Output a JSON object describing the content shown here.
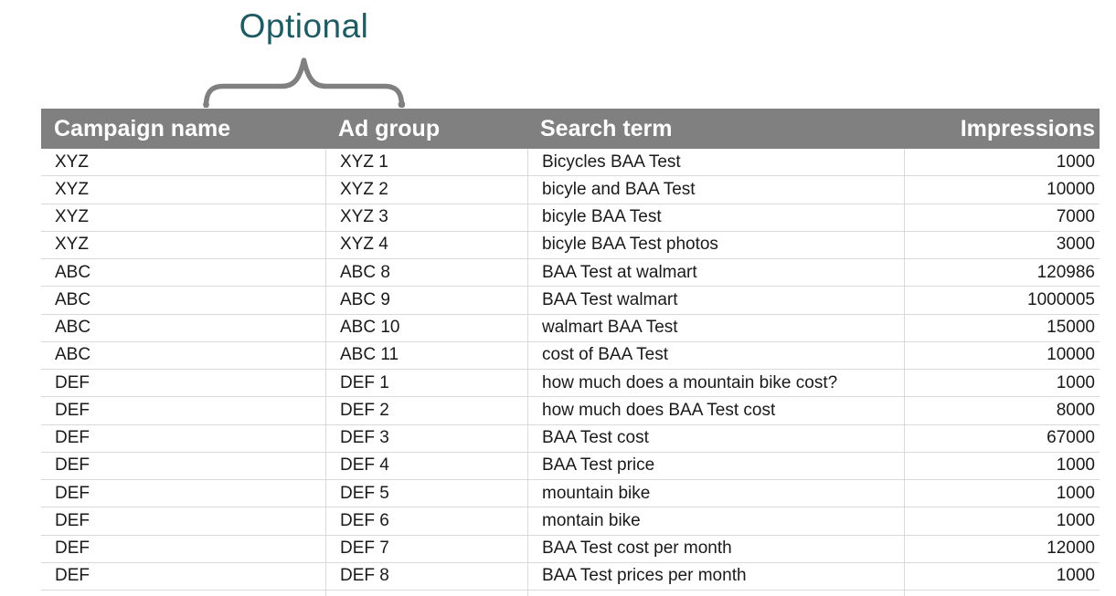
{
  "annotation": {
    "label": "Optional"
  },
  "colors": {
    "header_bg": "#808080",
    "header_text": "#ffffff",
    "annotation_text": "#1f5b62",
    "brace": "#808080",
    "gridline": "#d9d9d9",
    "cell_text": "#1a1a1a",
    "page_bg": "#ffffff"
  },
  "table": {
    "columns": [
      "Campaign name",
      "Ad group",
      "Search term",
      "Impressions"
    ],
    "rows": [
      [
        "XYZ",
        "XYZ 1",
        "Bicycles BAA Test",
        "1000"
      ],
      [
        "XYZ",
        "XYZ 2",
        "bicyle and BAA Test",
        "10000"
      ],
      [
        "XYZ",
        "XYZ 3",
        "bicyle BAA Test",
        "7000"
      ],
      [
        "XYZ",
        "XYZ 4",
        "bicyle BAA Test photos",
        "3000"
      ],
      [
        "ABC",
        "ABC 8",
        "BAA Test at walmart",
        "120986"
      ],
      [
        "ABC",
        "ABC 9",
        "BAA Test walmart",
        "1000005"
      ],
      [
        "ABC",
        "ABC 10",
        "walmart BAA Test",
        "15000"
      ],
      [
        "ABC",
        "ABC 11",
        "cost of BAA Test",
        "10000"
      ],
      [
        "DEF",
        "DEF 1",
        "how much does a mountain bike cost?",
        "1000"
      ],
      [
        "DEF",
        "DEF 2",
        "how much does BAA Test cost",
        "8000"
      ],
      [
        "DEF",
        "DEF 3",
        "BAA Test cost",
        "67000"
      ],
      [
        "DEF",
        "DEF 4",
        "BAA Test price",
        "1000"
      ],
      [
        "DEF",
        "DEF 5",
        "mountain bike",
        "1000"
      ],
      [
        "DEF",
        "DEF 6",
        "montain bike",
        "1000"
      ],
      [
        "DEF",
        "DEF 7",
        "BAA Test cost per month",
        "12000"
      ],
      [
        "DEF",
        "DEF 8",
        "BAA Test prices per month",
        "1000"
      ]
    ]
  }
}
